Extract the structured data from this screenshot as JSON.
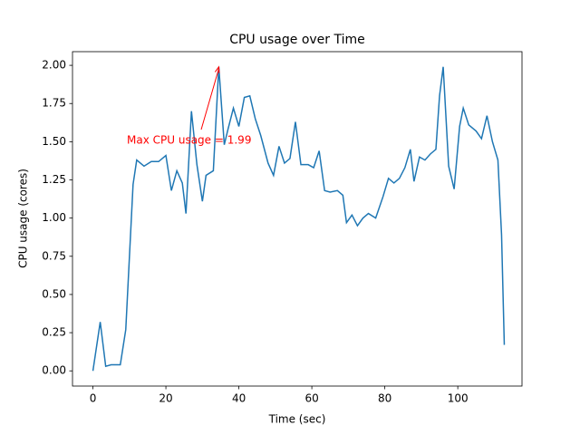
{
  "chart_data": {
    "type": "line",
    "title": "CPU usage over Time",
    "x_label": "Time (sec)",
    "y_label": "CPU usage (cores)",
    "x": [
      0,
      2,
      3.5,
      5,
      7.5,
      9,
      11,
      12,
      14,
      16,
      18,
      20,
      21.5,
      23,
      24.5,
      25.5,
      27,
      28.5,
      30,
      31,
      33,
      34.5,
      36,
      37,
      38.5,
      40,
      41.5,
      43,
      44.5,
      46,
      48,
      49.5,
      51,
      52.5,
      54,
      55.5,
      57,
      59,
      60.5,
      62,
      63.5,
      65,
      67,
      68.5,
      69.5,
      71,
      72.5,
      74,
      75.5,
      77.5,
      79.5,
      81,
      82.5,
      84,
      85.5,
      87,
      88,
      89.5,
      91,
      92.5,
      94,
      95,
      96,
      97.5,
      99,
      100.5,
      101.5,
      103,
      105,
      106.5,
      108,
      109.5,
      111,
      112,
      112.75
    ],
    "values": [
      0.0,
      0.32,
      0.03,
      0.04,
      0.04,
      0.27,
      1.22,
      1.38,
      1.34,
      1.37,
      1.37,
      1.41,
      1.18,
      1.31,
      1.23,
      1.03,
      1.7,
      1.35,
      1.11,
      1.28,
      1.31,
      1.99,
      1.48,
      1.58,
      1.72,
      1.6,
      1.79,
      1.8,
      1.65,
      1.54,
      1.36,
      1.28,
      1.47,
      1.36,
      1.39,
      1.63,
      1.35,
      1.35,
      1.33,
      1.44,
      1.18,
      1.17,
      1.18,
      1.15,
      0.97,
      1.02,
      0.95,
      1.0,
      1.03,
      1.0,
      1.14,
      1.26,
      1.23,
      1.26,
      1.33,
      1.45,
      1.24,
      1.4,
      1.38,
      1.42,
      1.45,
      1.8,
      1.99,
      1.34,
      1.19,
      1.6,
      1.72,
      1.61,
      1.57,
      1.52,
      1.67,
      1.5,
      1.38,
      0.89,
      0.17
    ],
    "color": "#1f77b4",
    "xlim": [
      -5.6,
      117.6
    ],
    "xticks": [
      0,
      20,
      40,
      60,
      80,
      100
    ],
    "ylim": [
      -0.0995,
      2.0895
    ],
    "yticks": [
      {
        "value": 0,
        "label": "0.00"
      },
      {
        "value": 0.25,
        "label": "0.25"
      },
      {
        "value": 0.5,
        "label": "0.50"
      },
      {
        "value": 0.75,
        "label": "0.75"
      },
      {
        "value": 1,
        "label": "1.00"
      },
      {
        "value": 1.25,
        "label": "1.25"
      },
      {
        "value": 1.5,
        "label": "1.50"
      },
      {
        "value": 1.75,
        "label": "1.75"
      },
      {
        "value": 2,
        "label": "2.00"
      }
    ],
    "annotation": {
      "text": "Max CPU usage = 1.99",
      "color": "#ff0000"
    },
    "grid": false
  }
}
